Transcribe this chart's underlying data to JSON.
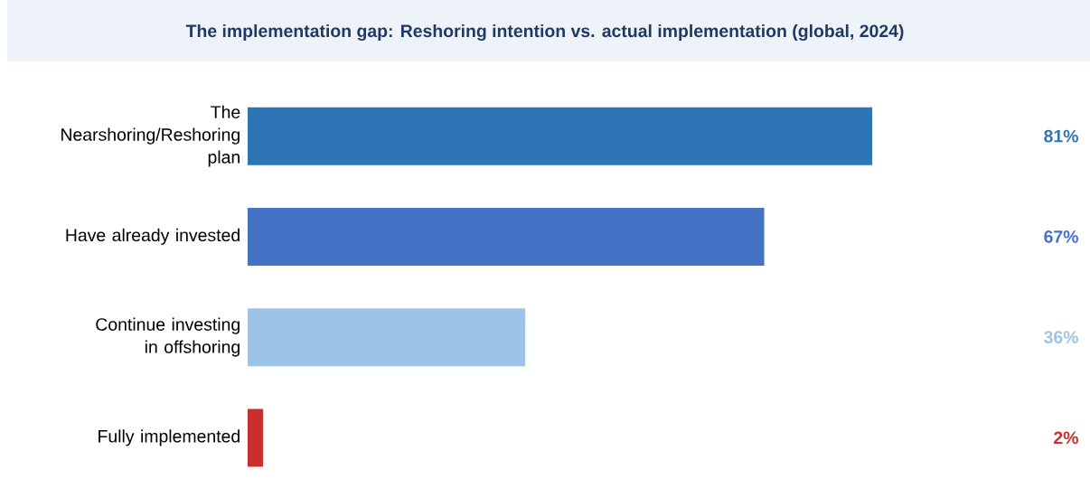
{
  "chart_data": {
    "type": "bar",
    "orientation": "horizontal",
    "title": "The implementation gap: Reshoring intention vs. actual implementation (global, 2024)",
    "categories": [
      "The Nearshoring/Reshoring plan",
      "Have already invested",
      "Continue investing in offshoring",
      "Fully implemented"
    ],
    "values": [
      81,
      67,
      36,
      2
    ],
    "colors": [
      "#2e75b6",
      "#4472c4",
      "#9dc3e6",
      "#c9302c"
    ],
    "value_labels": [
      "81%",
      "67%",
      "36%",
      "2%"
    ],
    "tick_labels": "y"
  }
}
